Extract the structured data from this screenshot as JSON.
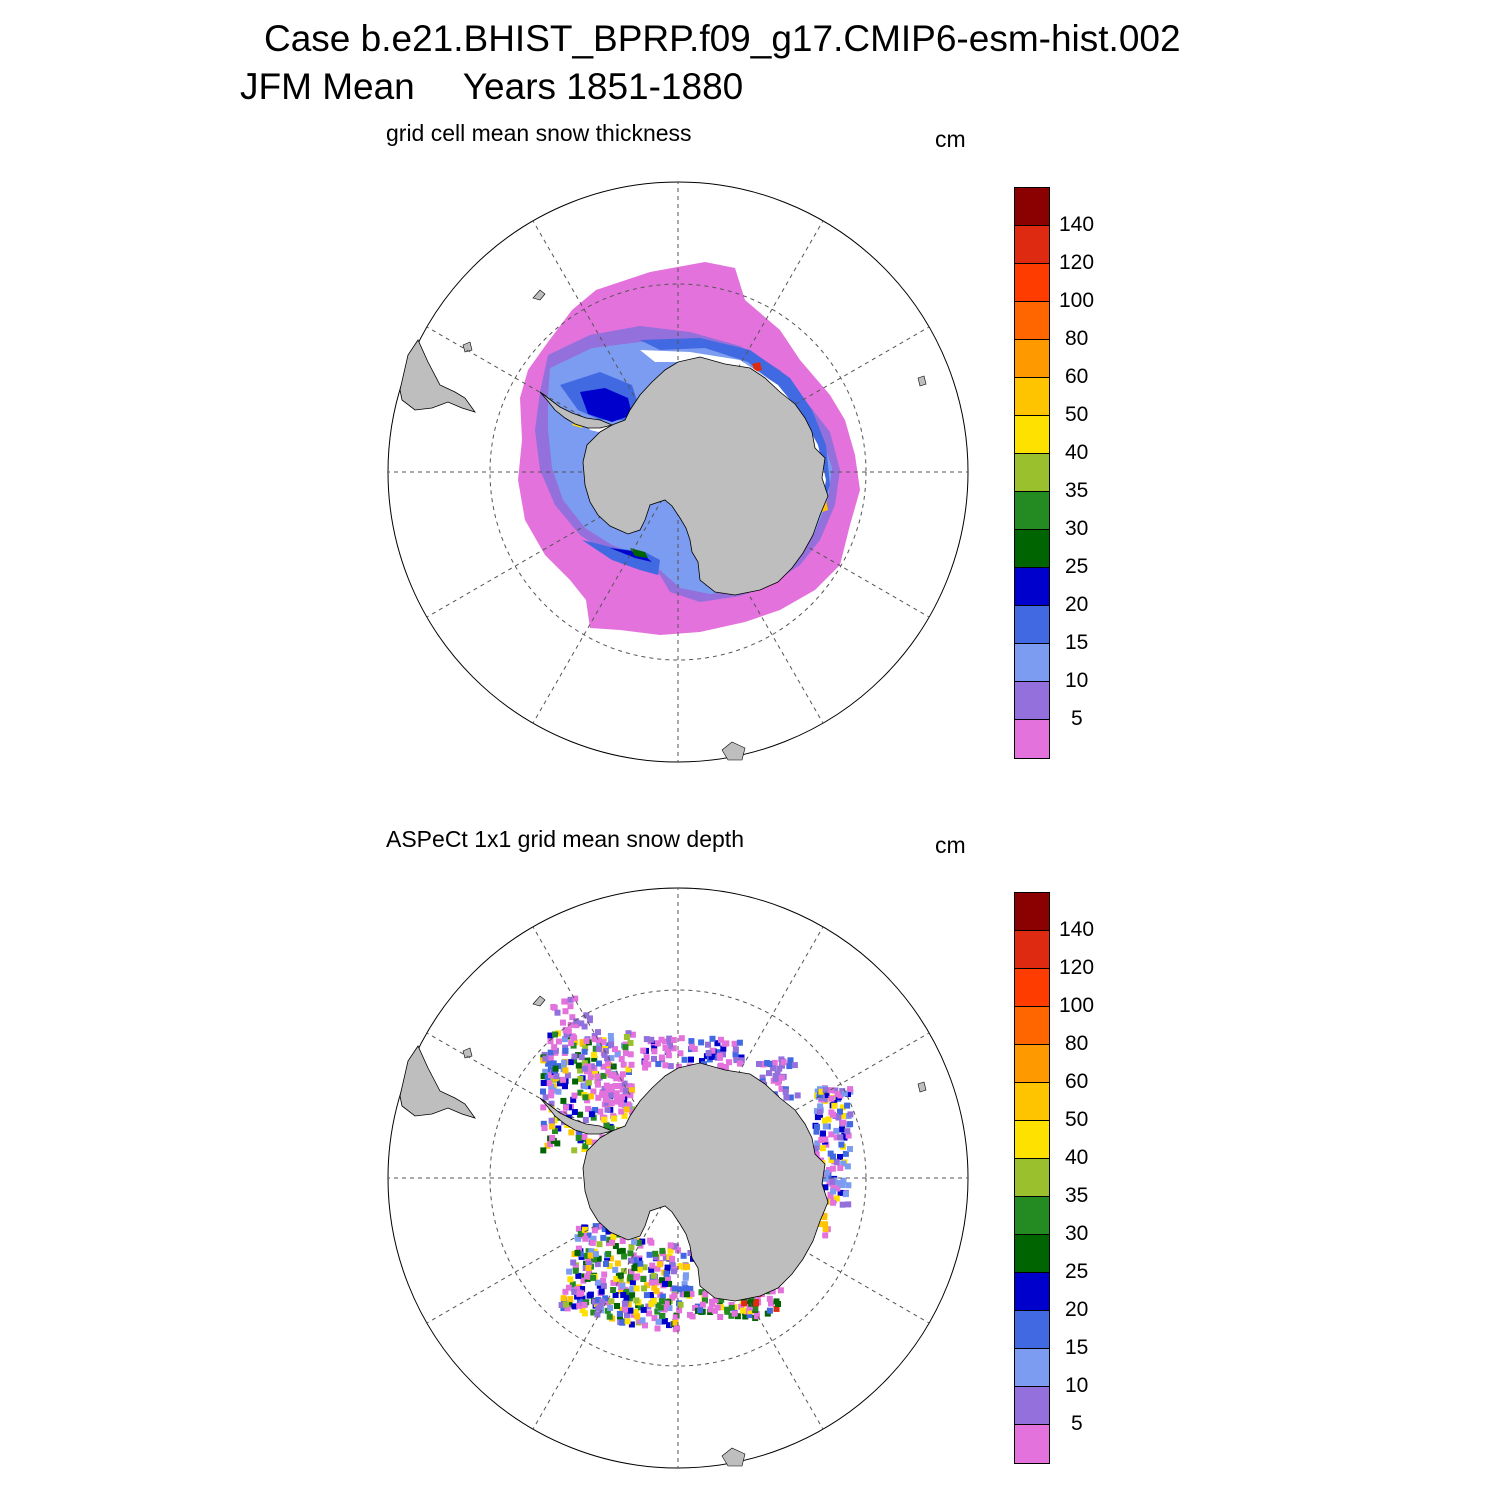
{
  "header": {
    "case_line": "Case b.e21.BHIST_BPRP.f09_g17.CMIP6-esm-hist.002",
    "season": "JFM Mean",
    "years": "Years 1851-1880"
  },
  "panels": [
    {
      "title": "grid cell mean snow thickness",
      "units": "cm"
    },
    {
      "title": "ASPeCt 1x1 grid mean snow depth",
      "units": "cm"
    }
  ],
  "colorbar": {
    "labels": [
      "140",
      "120",
      "100",
      "80",
      "60",
      "50",
      "40",
      "35",
      "30",
      "25",
      "20",
      "15",
      "10",
      "5"
    ],
    "colors": [
      "#8b0000",
      "#dd2a10",
      "#ff3c00",
      "#ff6600",
      "#ff9900",
      "#ffc400",
      "#ffe100",
      "#9bc02e",
      "#238b22",
      "#006400",
      "#0000cd",
      "#4169e1",
      "#7b9cf0",
      "#9370db",
      "#e472dc"
    ]
  },
  "map_style": {
    "land_color": "#bebebe",
    "ocean_color": "#ffffff",
    "grid_color": "#555555"
  }
}
